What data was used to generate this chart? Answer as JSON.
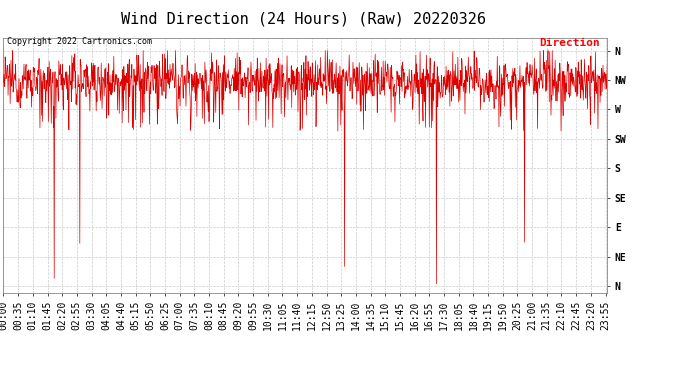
{
  "title": "Wind Direction (24 Hours) (Raw) 20220326",
  "copyright_text": "Copyright 2022 Cartronics.com",
  "legend_label": "Direction",
  "legend_color": "#ff0000",
  "line_color": "#dd0000",
  "background_color": "#ffffff",
  "grid_color": "#aaaaaa",
  "ytick_labels": [
    "N",
    "NW",
    "W",
    "SW",
    "S",
    "SE",
    "E",
    "NE",
    "N"
  ],
  "ytick_values": [
    360,
    315,
    270,
    225,
    180,
    135,
    90,
    45,
    0
  ],
  "ylim": [
    -10,
    380
  ],
  "title_fontsize": 11,
  "tick_fontsize": 7,
  "num_points": 1440,
  "base_direction": 315,
  "noise_std": 18,
  "small_dip_prob": 0.08,
  "small_dip_range": [
    30,
    80
  ],
  "large_dip_prob": 0.005,
  "large_dip_range": [
    200,
    315
  ]
}
